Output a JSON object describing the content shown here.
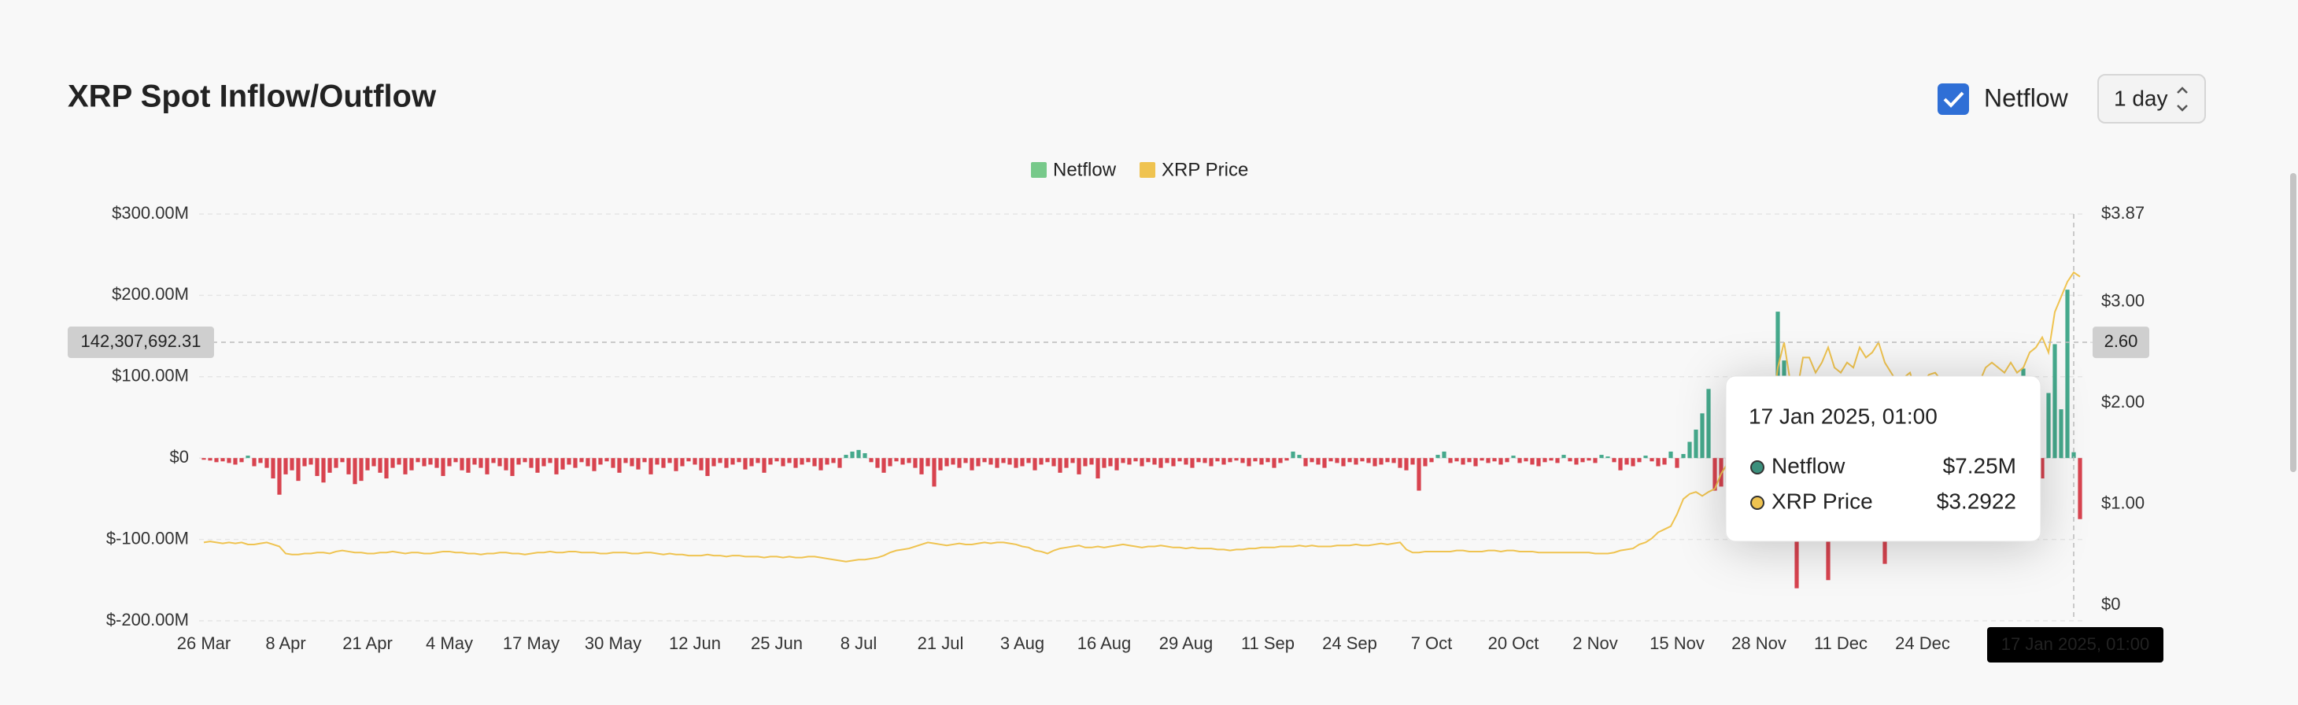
{
  "header": {
    "title": "XRP Spot Inflow/Outflow",
    "toggle_label": "Netflow",
    "interval": "1 day"
  },
  "chart_data": {
    "type": "combo",
    "categories": [
      "26 Mar",
      null,
      null,
      null,
      null,
      null,
      null,
      null,
      null,
      null,
      null,
      null,
      null,
      "8 Apr",
      null,
      null,
      null,
      null,
      null,
      null,
      null,
      null,
      null,
      null,
      null,
      null,
      "21 Apr",
      null,
      null,
      null,
      null,
      null,
      null,
      null,
      null,
      null,
      null,
      null,
      null,
      "4 May",
      null,
      null,
      null,
      null,
      null,
      null,
      null,
      null,
      null,
      null,
      null,
      null,
      "17 May",
      null,
      null,
      null,
      null,
      null,
      null,
      null,
      null,
      null,
      null,
      null,
      null,
      "30 May",
      null,
      null,
      null,
      null,
      null,
      null,
      null,
      null,
      null,
      null,
      null,
      null,
      "12 Jun",
      null,
      null,
      null,
      null,
      null,
      null,
      null,
      null,
      null,
      null,
      null,
      null,
      "25 Jun",
      null,
      null,
      null,
      null,
      null,
      null,
      null,
      null,
      null,
      null,
      null,
      null,
      "8 Jul",
      null,
      null,
      null,
      null,
      null,
      null,
      null,
      null,
      null,
      null,
      null,
      null,
      "21 Jul",
      null,
      null,
      null,
      null,
      null,
      null,
      null,
      null,
      null,
      null,
      null,
      null,
      "3 Aug",
      null,
      null,
      null,
      null,
      null,
      null,
      null,
      null,
      null,
      null,
      null,
      null,
      "16 Aug",
      null,
      null,
      null,
      null,
      null,
      null,
      null,
      null,
      null,
      null,
      null,
      null,
      "29 Aug",
      null,
      null,
      null,
      null,
      null,
      null,
      null,
      null,
      null,
      null,
      null,
      null,
      "11 Sep",
      null,
      null,
      null,
      null,
      null,
      null,
      null,
      null,
      null,
      null,
      null,
      null,
      "24 Sep",
      null,
      null,
      null,
      null,
      null,
      null,
      null,
      null,
      null,
      null,
      null,
      null,
      "7 Oct",
      null,
      null,
      null,
      null,
      null,
      null,
      null,
      null,
      null,
      null,
      null,
      null,
      "20 Oct",
      null,
      null,
      null,
      null,
      null,
      null,
      null,
      null,
      null,
      null,
      null,
      null,
      "2 Nov",
      null,
      null,
      null,
      null,
      null,
      null,
      null,
      null,
      null,
      null,
      null,
      null,
      "15 Nov",
      null,
      null,
      null,
      null,
      null,
      null,
      null,
      null,
      null,
      null,
      null,
      null,
      "28 Nov",
      null,
      null,
      null,
      null,
      null,
      null,
      null,
      null,
      null,
      null,
      null,
      null,
      "11 Dec",
      null,
      null,
      null,
      null,
      null,
      null,
      null,
      null,
      null,
      null,
      null,
      null,
      "24 Dec",
      null,
      null,
      null,
      null,
      null,
      null,
      null,
      null,
      null,
      null,
      null,
      null,
      null,
      null,
      null,
      null,
      null,
      null,
      null,
      null,
      null,
      null,
      null,
      null,
      null
    ],
    "series": [
      {
        "name": "Netflow",
        "type": "bar",
        "axis": "y",
        "color": "#77c98a",
        "positive_color": "#45a98c",
        "negative_color": "#d8434f",
        "values": [
          -2,
          -3,
          -5,
          -4,
          -6,
          -8,
          -5,
          3,
          -10,
          -6,
          -12,
          -25,
          -45,
          -20,
          -15,
          -28,
          -10,
          -8,
          -22,
          -30,
          -18,
          -12,
          -5,
          -20,
          -32,
          -28,
          -15,
          -10,
          -18,
          -25,
          -12,
          -8,
          -20,
          -15,
          -5,
          -10,
          -8,
          -12,
          -22,
          -10,
          -5,
          -15,
          -18,
          -8,
          -12,
          -20,
          -6,
          -10,
          -15,
          -22,
          -8,
          -5,
          -12,
          -18,
          -10,
          -6,
          -20,
          -14,
          -8,
          -12,
          -5,
          -10,
          -16,
          -8,
          -4,
          -12,
          -18,
          -6,
          -10,
          -14,
          -5,
          -20,
          -8,
          -12,
          -6,
          -16,
          -10,
          -4,
          -8,
          -15,
          -22,
          -10,
          -6,
          -12,
          -8,
          -5,
          -14,
          -10,
          -6,
          -18,
          -8,
          -4,
          -10,
          -6,
          -12,
          -8,
          -5,
          -10,
          -15,
          -8,
          -6,
          -12,
          4,
          8,
          10,
          6,
          -5,
          -12,
          -18,
          -10,
          -4,
          -8,
          -6,
          -12,
          -20,
          -10,
          -35,
          -15,
          -10,
          -8,
          -12,
          -6,
          -15,
          -10,
          -5,
          -8,
          -12,
          -6,
          -8,
          -12,
          -10,
          -6,
          -15,
          -8,
          -5,
          -10,
          -18,
          -12,
          -6,
          -20,
          -10,
          -8,
          -25,
          -12,
          -10,
          -15,
          -6,
          -8,
          -4,
          -10,
          -5,
          -8,
          -12,
          -6,
          -10,
          -4,
          -8,
          -12,
          -5,
          -6,
          -10,
          -4,
          -8,
          -5,
          -3,
          -6,
          -10,
          -4,
          -8,
          -5,
          -12,
          -6,
          -3,
          8,
          4,
          -10,
          -5,
          -8,
          -12,
          -4,
          -6,
          -10,
          -5,
          -8,
          -4,
          -6,
          -10,
          -8,
          -5,
          -6,
          -12,
          -15,
          -8,
          -40,
          -10,
          -5,
          4,
          8,
          -6,
          -4,
          -8,
          -5,
          -10,
          -3,
          -6,
          -4,
          -8,
          -5,
          3,
          -6,
          -4,
          -8,
          -10,
          -5,
          -3,
          -6,
          4,
          -4,
          -8,
          -5,
          -3,
          -6,
          4,
          2,
          -5,
          -15,
          -8,
          -10,
          -5,
          3,
          -4,
          -10,
          -8,
          8,
          -12,
          5,
          20,
          35,
          55,
          85,
          -40,
          -35,
          -30,
          -20,
          30,
          -25,
          60,
          -45,
          100,
          -20,
          180,
          120,
          -80,
          -160,
          60,
          -60,
          90,
          -100,
          -150,
          40,
          -60,
          70,
          -40,
          30,
          -50,
          20,
          -80,
          -130,
          60,
          -100,
          -70,
          40,
          -30,
          50,
          -20,
          30,
          -40,
          20,
          -25,
          40,
          -30,
          25,
          -20,
          60,
          -15,
          40,
          -30,
          70,
          -20,
          110,
          -40,
          30,
          -25,
          80,
          140,
          60,
          207,
          7.25,
          -75
        ]
      },
      {
        "name": "XRP Price",
        "type": "line",
        "axis": "y2",
        "color": "#efc350",
        "values": [
          0.62,
          0.63,
          0.62,
          0.61,
          0.62,
          0.61,
          0.62,
          0.6,
          0.6,
          0.61,
          0.62,
          0.6,
          0.58,
          0.51,
          0.5,
          0.5,
          0.51,
          0.51,
          0.52,
          0.52,
          0.51,
          0.53,
          0.54,
          0.53,
          0.52,
          0.52,
          0.51,
          0.51,
          0.52,
          0.52,
          0.53,
          0.52,
          0.51,
          0.52,
          0.52,
          0.51,
          0.51,
          0.52,
          0.53,
          0.53,
          0.52,
          0.52,
          0.51,
          0.51,
          0.5,
          0.51,
          0.51,
          0.52,
          0.52,
          0.51,
          0.51,
          0.5,
          0.51,
          0.52,
          0.52,
          0.53,
          0.52,
          0.52,
          0.53,
          0.53,
          0.52,
          0.52,
          0.52,
          0.51,
          0.51,
          0.52,
          0.52,
          0.52,
          0.51,
          0.51,
          0.52,
          0.52,
          0.51,
          0.5,
          0.51,
          0.5,
          0.5,
          0.49,
          0.49,
          0.49,
          0.5,
          0.49,
          0.49,
          0.48,
          0.49,
          0.49,
          0.48,
          0.48,
          0.48,
          0.47,
          0.48,
          0.48,
          0.47,
          0.48,
          0.47,
          0.47,
          0.48,
          0.48,
          0.47,
          0.46,
          0.45,
          0.44,
          0.43,
          0.44,
          0.45,
          0.45,
          0.46,
          0.47,
          0.49,
          0.52,
          0.54,
          0.55,
          0.56,
          0.58,
          0.6,
          0.62,
          0.61,
          0.6,
          0.59,
          0.6,
          0.61,
          0.6,
          0.6,
          0.61,
          0.62,
          0.61,
          0.62,
          0.62,
          0.61,
          0.6,
          0.58,
          0.57,
          0.54,
          0.53,
          0.51,
          0.54,
          0.56,
          0.57,
          0.58,
          0.59,
          0.57,
          0.57,
          0.58,
          0.57,
          0.58,
          0.59,
          0.6,
          0.59,
          0.58,
          0.57,
          0.58,
          0.58,
          0.59,
          0.58,
          0.57,
          0.57,
          0.56,
          0.57,
          0.56,
          0.56,
          0.56,
          0.55,
          0.55,
          0.54,
          0.55,
          0.55,
          0.56,
          0.56,
          0.57,
          0.57,
          0.57,
          0.58,
          0.58,
          0.58,
          0.59,
          0.58,
          0.59,
          0.58,
          0.58,
          0.58,
          0.59,
          0.59,
          0.59,
          0.6,
          0.59,
          0.59,
          0.6,
          0.61,
          0.6,
          0.61,
          0.62,
          0.55,
          0.52,
          0.52,
          0.53,
          0.53,
          0.53,
          0.53,
          0.53,
          0.54,
          0.54,
          0.53,
          0.53,
          0.53,
          0.54,
          0.54,
          0.53,
          0.54,
          0.54,
          0.53,
          0.53,
          0.53,
          0.52,
          0.52,
          0.52,
          0.52,
          0.52,
          0.52,
          0.52,
          0.52,
          0.52,
          0.51,
          0.51,
          0.51,
          0.52,
          0.54,
          0.55,
          0.56,
          0.6,
          0.62,
          0.66,
          0.72,
          0.75,
          0.78,
          0.9,
          1.05,
          1.1,
          1.12,
          1.08,
          1.12,
          1.15,
          1.3,
          1.4,
          1.42,
          1.45,
          1.4,
          1.48,
          1.5,
          1.65,
          1.85,
          2.35,
          2.6,
          2.2,
          2.1,
          2.45,
          2.45,
          2.3,
          2.4,
          2.55,
          2.35,
          2.3,
          2.4,
          2.35,
          2.55,
          2.45,
          2.5,
          2.6,
          2.4,
          2.3,
          2.2,
          2.25,
          2.3,
          2.1,
          2.2,
          2.28,
          2.3,
          2.22,
          2.2,
          2.1,
          2.08,
          2.05,
          2.1,
          2.2,
          2.35,
          2.4,
          2.35,
          2.3,
          2.4,
          2.3,
          2.35,
          2.5,
          2.55,
          2.65,
          2.5,
          2.9,
          3.05,
          3.2,
          3.2922,
          3.25
        ]
      }
    ],
    "ylim": [
      -200,
      300
    ],
    "yticks": [
      {
        "value": 300,
        "label": "$300.00M"
      },
      {
        "value": 200,
        "label": "$200.00M"
      },
      {
        "value": 100,
        "label": "$100.00M"
      },
      {
        "value": 0,
        "label": "$0"
      },
      {
        "value": -100,
        "label": "$-100.00M"
      },
      {
        "value": -200,
        "label": "$-200.00M"
      }
    ],
    "y2lim": [
      0,
      3.87
    ],
    "y2ticks": [
      {
        "value": 3.87,
        "label": "$3.87"
      },
      {
        "value": 3,
        "label": "$3.00"
      },
      {
        "value": 2,
        "label": "$2.00"
      },
      {
        "value": 1,
        "label": "$1.00"
      },
      {
        "value": 0,
        "label": "$0"
      }
    ],
    "grid": true,
    "legend": "top",
    "crosshair": {
      "x_label": "17 Jan 2025, 01:00",
      "y": {
        "value": 142.30769231,
        "label": "142,307,692.31"
      },
      "y2": {
        "value": 2.6,
        "label": "2.60"
      }
    },
    "tooltip": {
      "date": "17 Jan 2025, 01:00",
      "value_labels": [
        "$7.25M",
        "$3.2922"
      ]
    }
  }
}
